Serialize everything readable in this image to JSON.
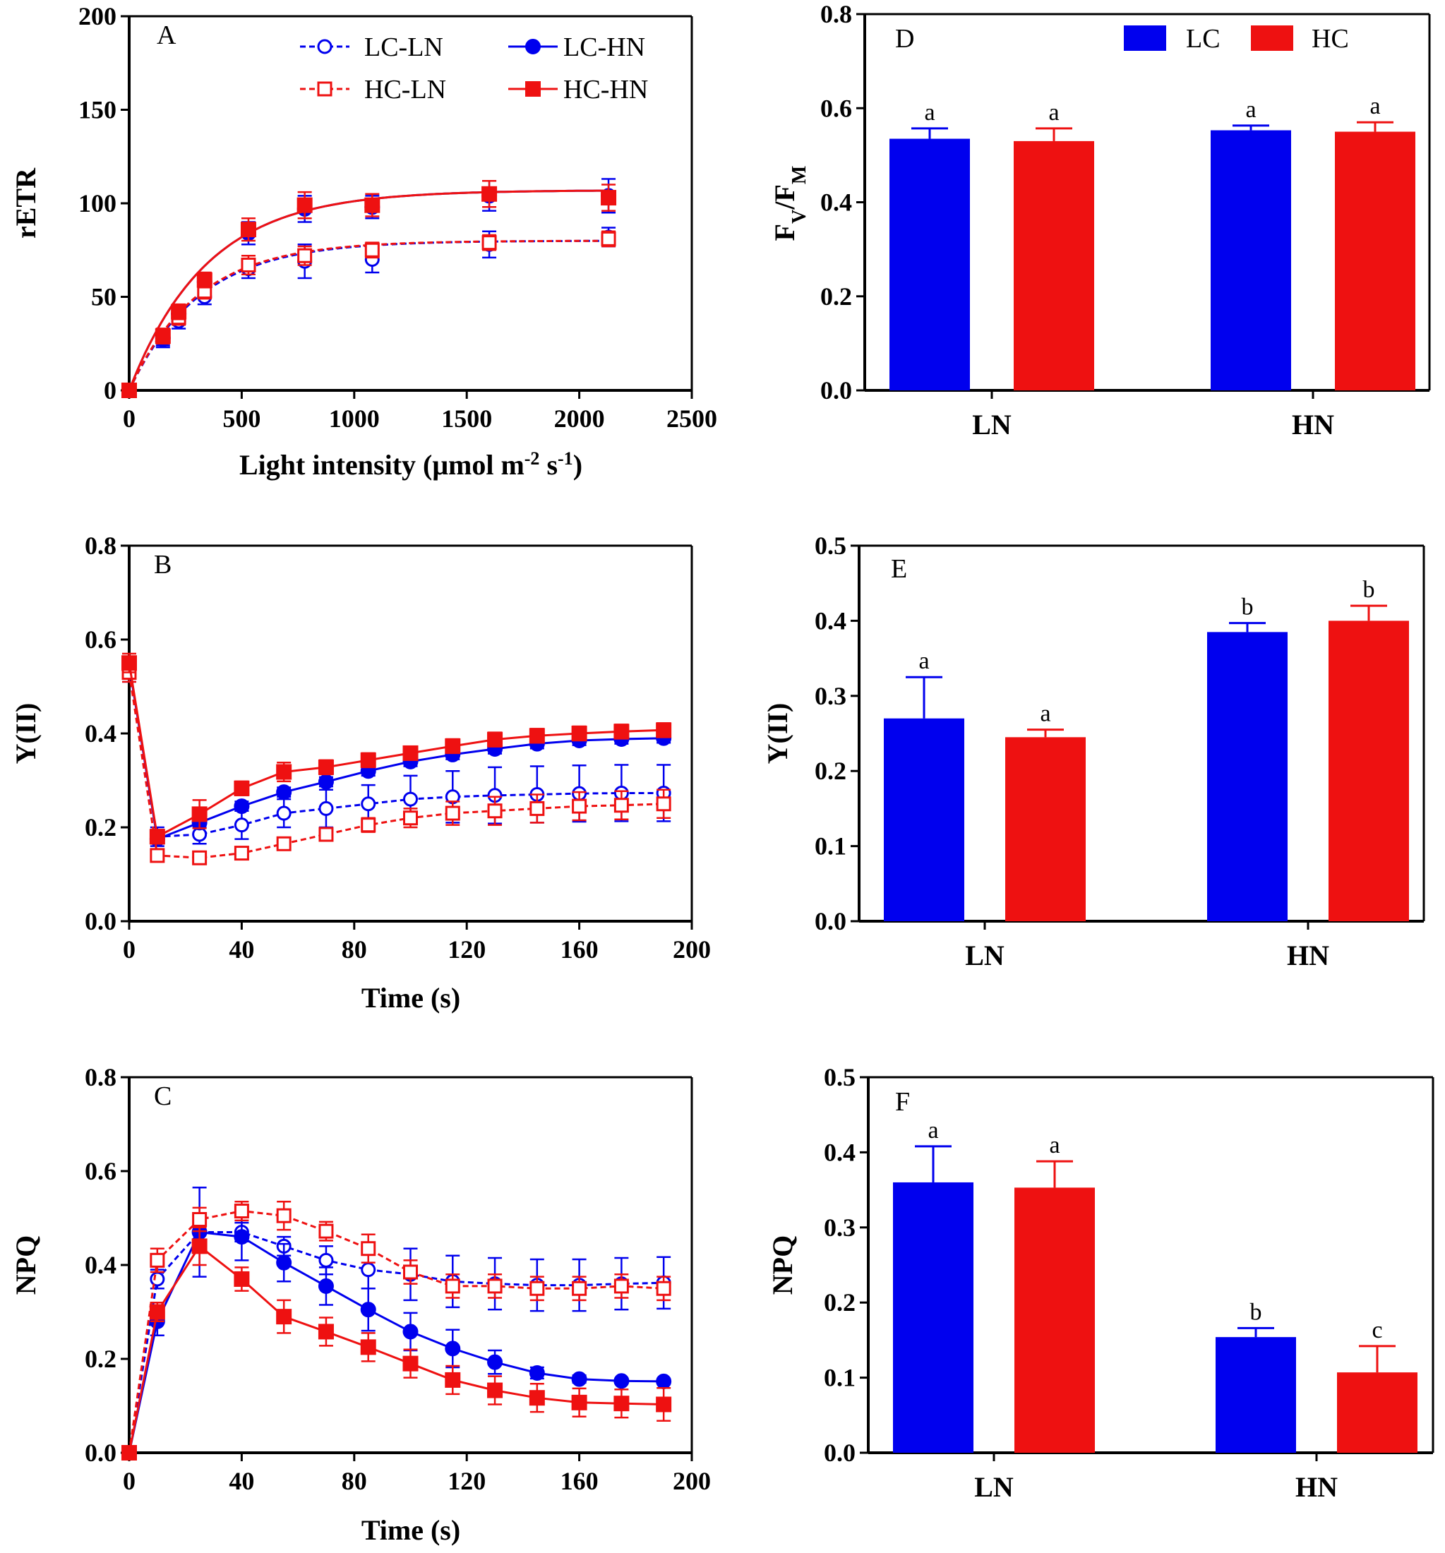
{
  "colors": {
    "LC": "#0000ee",
    "HC": "#ee1111",
    "axis": "#000000"
  },
  "chart_data": [
    {
      "id": "A",
      "type": "line",
      "panel_label": "A",
      "xlabel_main": "Light intensity (μmol m",
      "xlabel_exp1": "-2",
      "xlabel_mid": " s",
      "xlabel_exp2": "-1",
      "xlabel_end": ")",
      "ylabel": "rETR",
      "xlim": [
        0,
        2500
      ],
      "ylim": [
        0,
        200
      ],
      "xticks": [
        0,
        500,
        1000,
        1500,
        2000,
        2500
      ],
      "yticks": [
        0,
        50,
        100,
        150,
        200
      ],
      "legend": [
        "LC-LN",
        "LC-HN",
        "HC-LN",
        "HC-HN"
      ],
      "series": [
        {
          "name": "LC-LN",
          "x": [
            0,
            150,
            220,
            335,
            530,
            780,
            1080,
            1600,
            2130
          ],
          "y": [
            0,
            27,
            37,
            50,
            65,
            69,
            70,
            78,
            82
          ],
          "err": [
            0,
            4,
            4,
            4,
            5,
            9,
            7,
            7,
            5
          ],
          "fit": {
            "pmax": 80,
            "k": 0.0032
          }
        },
        {
          "name": "LC-HN",
          "x": [
            0,
            150,
            220,
            335,
            530,
            780,
            1080,
            1600,
            2130
          ],
          "y": [
            0,
            28,
            41,
            58,
            84,
            97,
            98,
            104,
            104
          ],
          "err": [
            0,
            4,
            4,
            4,
            6,
            7,
            6,
            8,
            9
          ],
          "fit": {
            "pmax": 107,
            "k": 0.0029
          }
        },
        {
          "name": "HC-LN",
          "x": [
            0,
            150,
            220,
            335,
            530,
            780,
            1080,
            1600,
            2130
          ],
          "y": [
            0,
            29,
            39,
            53,
            67,
            72,
            75,
            79,
            81
          ],
          "err": [
            0,
            4,
            4,
            4,
            5,
            5,
            4,
            4,
            4
          ],
          "fit": {
            "pmax": 80,
            "k": 0.0033
          }
        },
        {
          "name": "HC-HN",
          "x": [
            0,
            150,
            220,
            335,
            530,
            780,
            1080,
            1600,
            2130
          ],
          "y": [
            0,
            29,
            42,
            59,
            86,
            99,
            99,
            105,
            103
          ],
          "err": [
            0,
            4,
            4,
            4,
            6,
            7,
            6,
            7,
            7
          ],
          "fit": {
            "pmax": 107,
            "k": 0.0029
          }
        }
      ]
    },
    {
      "id": "B",
      "type": "line",
      "panel_label": "B",
      "xlabel": "Time (s)",
      "ylabel": "Y(II)",
      "xlim": [
        0,
        200
      ],
      "ylim": [
        0,
        0.8
      ],
      "xticks": [
        0,
        40,
        80,
        120,
        160,
        200
      ],
      "yticks": [
        0.0,
        0.2,
        0.4,
        0.6,
        0.8
      ],
      "series": [
        {
          "name": "LC-LN",
          "x": [
            0,
            10,
            25,
            40,
            55,
            70,
            85,
            100,
            115,
            130,
            145,
            160,
            175,
            190
          ],
          "y": [
            0.53,
            0.18,
            0.185,
            0.205,
            0.23,
            0.24,
            0.25,
            0.26,
            0.265,
            0.268,
            0.27,
            0.272,
            0.273,
            0.273
          ],
          "err": [
            0.02,
            0.02,
            0.02,
            0.03,
            0.03,
            0.04,
            0.04,
            0.05,
            0.055,
            0.06,
            0.06,
            0.06,
            0.06,
            0.06
          ]
        },
        {
          "name": "LC-HN",
          "x": [
            0,
            10,
            25,
            40,
            55,
            70,
            85,
            100,
            115,
            130,
            145,
            160,
            175,
            190
          ],
          "y": [
            0.545,
            0.175,
            0.21,
            0.245,
            0.275,
            0.297,
            0.32,
            0.34,
            0.355,
            0.367,
            0.378,
            0.385,
            0.388,
            0.39
          ],
          "err": [
            0.01,
            0.01,
            0.01,
            0.01,
            0.01,
            0.01,
            0.01,
            0.01,
            0.01,
            0.01,
            0.01,
            0.01,
            0.01,
            0.01
          ]
        },
        {
          "name": "HC-LN",
          "x": [
            0,
            10,
            25,
            40,
            55,
            70,
            85,
            100,
            115,
            130,
            145,
            160,
            175,
            190
          ],
          "y": [
            0.53,
            0.14,
            0.135,
            0.145,
            0.165,
            0.185,
            0.205,
            0.22,
            0.23,
            0.235,
            0.24,
            0.245,
            0.247,
            0.25
          ],
          "err": [
            0.02,
            0.01,
            0.01,
            0.01,
            0.01,
            0.01,
            0.015,
            0.02,
            0.025,
            0.03,
            0.03,
            0.03,
            0.03,
            0.03
          ]
        },
        {
          "name": "HC-HN",
          "x": [
            0,
            10,
            25,
            40,
            55,
            70,
            85,
            100,
            115,
            130,
            145,
            160,
            175,
            190
          ],
          "y": [
            0.55,
            0.18,
            0.228,
            0.283,
            0.318,
            0.328,
            0.343,
            0.358,
            0.373,
            0.387,
            0.395,
            0.4,
            0.404,
            0.407
          ],
          "err": [
            0.02,
            0.015,
            0.03,
            0.015,
            0.02,
            0.015,
            0.015,
            0.01,
            0.015,
            0.015,
            0.015,
            0.015,
            0.015,
            0.015
          ]
        }
      ]
    },
    {
      "id": "C",
      "type": "line",
      "panel_label": "C",
      "xlabel": "Time (s)",
      "ylabel": "NPQ",
      "xlim": [
        0,
        200
      ],
      "ylim": [
        0,
        0.8
      ],
      "xticks": [
        0,
        40,
        80,
        120,
        160,
        200
      ],
      "yticks": [
        0.0,
        0.2,
        0.4,
        0.6,
        0.8
      ],
      "series": [
        {
          "name": "LC-LN",
          "x": [
            0,
            10,
            25,
            40,
            55,
            70,
            85,
            100,
            115,
            130,
            145,
            160,
            175,
            190
          ],
          "y": [
            0,
            0.37,
            0.47,
            0.47,
            0.44,
            0.41,
            0.39,
            0.38,
            0.365,
            0.36,
            0.357,
            0.357,
            0.36,
            0.362
          ],
          "err": [
            0,
            0.02,
            0.02,
            0.02,
            0.02,
            0.03,
            0.04,
            0.055,
            0.055,
            0.055,
            0.055,
            0.055,
            0.055,
            0.055
          ]
        },
        {
          "name": "LC-HN",
          "x": [
            0,
            10,
            25,
            40,
            55,
            70,
            85,
            100,
            115,
            130,
            145,
            160,
            175,
            190
          ],
          "y": [
            0,
            0.28,
            0.47,
            0.46,
            0.405,
            0.355,
            0.305,
            0.258,
            0.222,
            0.193,
            0.17,
            0.157,
            0.153,
            0.152
          ],
          "err": [
            0,
            0.03,
            0.095,
            0.05,
            0.04,
            0.04,
            0.045,
            0.04,
            0.04,
            0.025,
            0.012,
            0.008,
            0.005,
            0.005
          ]
        },
        {
          "name": "HC-LN",
          "x": [
            0,
            10,
            25,
            40,
            55,
            70,
            85,
            100,
            115,
            130,
            145,
            160,
            175,
            190
          ],
          "y": [
            0,
            0.41,
            0.497,
            0.515,
            0.505,
            0.472,
            0.435,
            0.385,
            0.355,
            0.355,
            0.35,
            0.35,
            0.355,
            0.35
          ],
          "err": [
            0,
            0.025,
            0.025,
            0.02,
            0.03,
            0.02,
            0.03,
            0.025,
            0.025,
            0.025,
            0.025,
            0.025,
            0.025,
            0.025
          ]
        },
        {
          "name": "HC-HN",
          "x": [
            0,
            10,
            25,
            40,
            55,
            70,
            85,
            100,
            115,
            130,
            145,
            160,
            175,
            190
          ],
          "y": [
            0,
            0.3,
            0.44,
            0.37,
            0.29,
            0.258,
            0.225,
            0.19,
            0.155,
            0.133,
            0.117,
            0.107,
            0.105,
            0.103
          ],
          "err": [
            0,
            0.02,
            0.04,
            0.025,
            0.035,
            0.03,
            0.03,
            0.03,
            0.03,
            0.03,
            0.03,
            0.03,
            0.03,
            0.035
          ]
        }
      ]
    },
    {
      "id": "D",
      "type": "bar",
      "panel_label": "D",
      "ylabel_main": "F",
      "ylabel_sub1": "V",
      "ylabel_slash": "/F",
      "ylabel_sub2": "M",
      "categories": [
        "LN",
        "HN"
      ],
      "ylim": [
        0,
        0.8
      ],
      "yticks": [
        0.0,
        0.2,
        0.4,
        0.6,
        0.8
      ],
      "legend": [
        "LC",
        "HC"
      ],
      "series": [
        {
          "name": "LC",
          "values": [
            0.535,
            0.553
          ],
          "err": [
            0.022,
            0.01
          ],
          "sig": [
            "a",
            "a"
          ]
        },
        {
          "name": "HC",
          "values": [
            0.53,
            0.55
          ],
          "err": [
            0.027,
            0.02
          ],
          "sig": [
            "a",
            "a"
          ]
        }
      ]
    },
    {
      "id": "E",
      "type": "bar",
      "panel_label": "E",
      "ylabel": "Y(II)",
      "categories": [
        "LN",
        "HN"
      ],
      "ylim": [
        0,
        0.5
      ],
      "yticks": [
        0.0,
        0.1,
        0.2,
        0.3,
        0.4,
        0.5
      ],
      "series": [
        {
          "name": "LC",
          "values": [
            0.27,
            0.385
          ],
          "err": [
            0.055,
            0.012
          ],
          "sig": [
            "a",
            "b"
          ]
        },
        {
          "name": "HC",
          "values": [
            0.245,
            0.4
          ],
          "err": [
            0.01,
            0.02
          ],
          "sig": [
            "a",
            "b"
          ]
        }
      ]
    },
    {
      "id": "F",
      "type": "bar",
      "panel_label": "F",
      "ylabel": "NPQ",
      "categories": [
        "LN",
        "HN"
      ],
      "ylim": [
        0,
        0.5
      ],
      "yticks": [
        0.0,
        0.1,
        0.2,
        0.3,
        0.4,
        0.5
      ],
      "series": [
        {
          "name": "LC",
          "values": [
            0.36,
            0.154
          ],
          "err": [
            0.048,
            0.012
          ],
          "sig": [
            "a",
            "b"
          ]
        },
        {
          "name": "HC",
          "values": [
            0.353,
            0.107
          ],
          "err": [
            0.035,
            0.035
          ],
          "sig": [
            "a",
            "c"
          ]
        }
      ]
    }
  ]
}
